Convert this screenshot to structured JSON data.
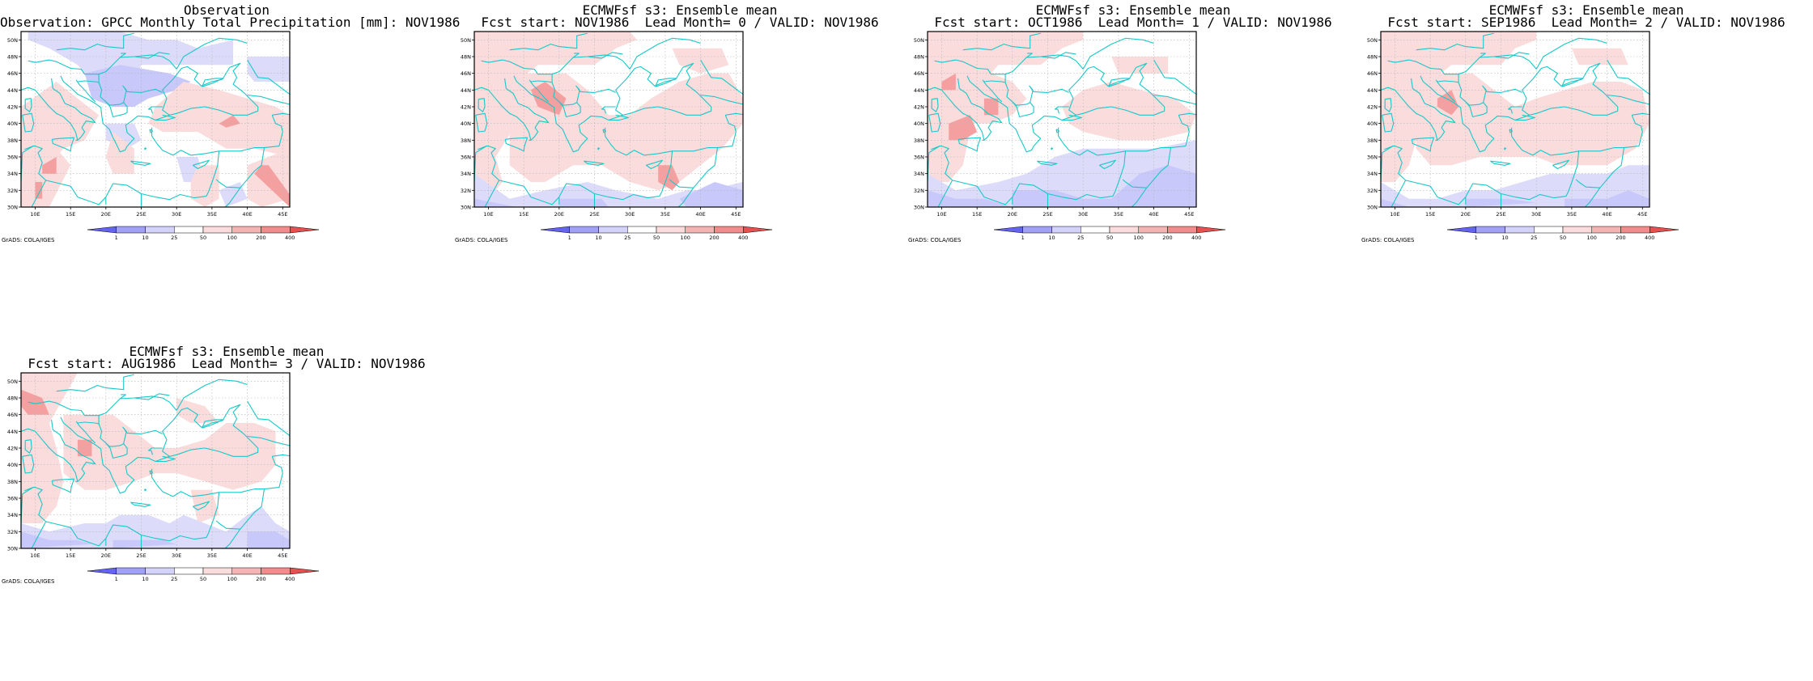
{
  "panels": [
    {
      "title_line1": "Observation",
      "title_line2": "Observation: GPCC Monthly Total Precipitation [mm]: NOV1986",
      "variant": "obs"
    },
    {
      "title_line1": "ECMWFsf s3: Ensemble mean",
      "title_line2": "Fcst start: NOV1986  Lead Month= 0 / VALID: NOV1986",
      "variant": "lead0"
    },
    {
      "title_line1": "ECMWFsf s3: Ensemble mean",
      "title_line2": "Fcst start: OCT1986  Lead Month= 1 / VALID: NOV1986",
      "variant": "lead1"
    },
    {
      "title_line1": "ECMWFsf s3: Ensemble mean",
      "title_line2": "Fcst start: SEP1986  Lead Month= 2 / VALID: NOV1986",
      "variant": "lead2"
    },
    {
      "title_line1": "ECMWFsf s3: Ensemble mean",
      "title_line2": "Fcst start: AUG1986  Lead Month= 3 / VALID: NOV1986",
      "variant": "lead3"
    }
  ],
  "map": {
    "lon_range": [
      8,
      46
    ],
    "lat_range": [
      30,
      51
    ],
    "x_ticks": [
      "10E",
      "15E",
      "20E",
      "25E",
      "30E",
      "35E",
      "40E",
      "45E"
    ],
    "y_ticks": [
      "30N",
      "32N",
      "34N",
      "36N",
      "38N",
      "40N",
      "42N",
      "44N",
      "46N",
      "48N",
      "50N"
    ],
    "coast_color": "#19c8c8",
    "grid": true
  },
  "colorbar": {
    "labels": [
      "1",
      "10",
      "25",
      "50",
      "100",
      "200",
      "400"
    ],
    "colors": [
      "#6464f0",
      "#a0a0f5",
      "#d2d2fa",
      "#ffffff",
      "#fadcdc",
      "#f5b4b4",
      "#f08c8c",
      "#e65050"
    ]
  },
  "footer": "GrADS: COLA/IGES",
  "colors": {
    "blue_dark": "#a0a0f5",
    "blue_mid": "#c8c8fa",
    "blue_light": "#dcdcfa",
    "red_light": "#fadcdc",
    "red_mid": "#f5a0a0",
    "coast": "#19c8c8"
  }
}
